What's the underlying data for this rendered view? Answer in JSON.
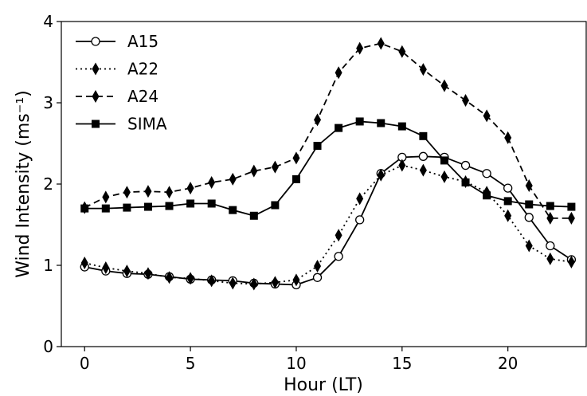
{
  "chart_data": {
    "type": "line",
    "x": [
      0,
      1,
      2,
      3,
      4,
      5,
      6,
      7,
      8,
      9,
      10,
      11,
      12,
      13,
      14,
      15,
      16,
      17,
      18,
      19,
      20,
      21,
      22,
      23
    ],
    "series": [
      {
        "name": "A15",
        "color": "#000000",
        "linestyle": "solid",
        "marker": "circle",
        "values": [
          0.98,
          0.93,
          0.9,
          0.89,
          0.86,
          0.83,
          0.82,
          0.81,
          0.78,
          0.77,
          0.76,
          0.85,
          1.11,
          1.56,
          2.13,
          2.33,
          2.34,
          2.33,
          2.23,
          2.13,
          1.95,
          1.59,
          1.24,
          1.07
        ]
      },
      {
        "name": "A22",
        "color": "#000000",
        "linestyle": "dotted",
        "marker": "diamond",
        "values": [
          1.03,
          0.97,
          0.93,
          0.9,
          0.85,
          0.84,
          0.81,
          0.78,
          0.77,
          0.79,
          0.82,
          0.99,
          1.37,
          1.82,
          2.11,
          2.23,
          2.17,
          2.09,
          2.03,
          1.9,
          1.61,
          1.24,
          1.08,
          1.04
        ]
      },
      {
        "name": "A24",
        "color": "#000000",
        "linestyle": "dashed",
        "marker": "diamond",
        "values": [
          1.71,
          1.84,
          1.9,
          1.91,
          1.9,
          1.95,
          2.02,
          2.06,
          2.16,
          2.21,
          2.32,
          2.79,
          3.37,
          3.67,
          3.73,
          3.63,
          3.41,
          3.21,
          3.03,
          2.84,
          2.57,
          1.98,
          1.58,
          1.58
        ]
      },
      {
        "name": "SIMA",
        "color": "#000000",
        "linestyle": "solid",
        "marker": "square",
        "values": [
          1.7,
          1.7,
          1.71,
          1.72,
          1.73,
          1.76,
          1.76,
          1.68,
          1.61,
          1.74,
          2.06,
          2.47,
          2.69,
          2.77,
          2.75,
          2.71,
          2.59,
          2.29,
          2.02,
          1.86,
          1.79,
          1.75,
          1.73,
          1.72
        ]
      }
    ],
    "x_label": "Hour (LT)",
    "y_label": "Wind Intensity (ms⁻¹)",
    "xlim": [
      -1.1,
      23.7
    ],
    "ylim": [
      0,
      4
    ],
    "xticks": [
      0,
      5,
      10,
      15,
      20
    ],
    "yticks": [
      0,
      1,
      2,
      3,
      4
    ],
    "legend": "upper left",
    "grid": false
  }
}
